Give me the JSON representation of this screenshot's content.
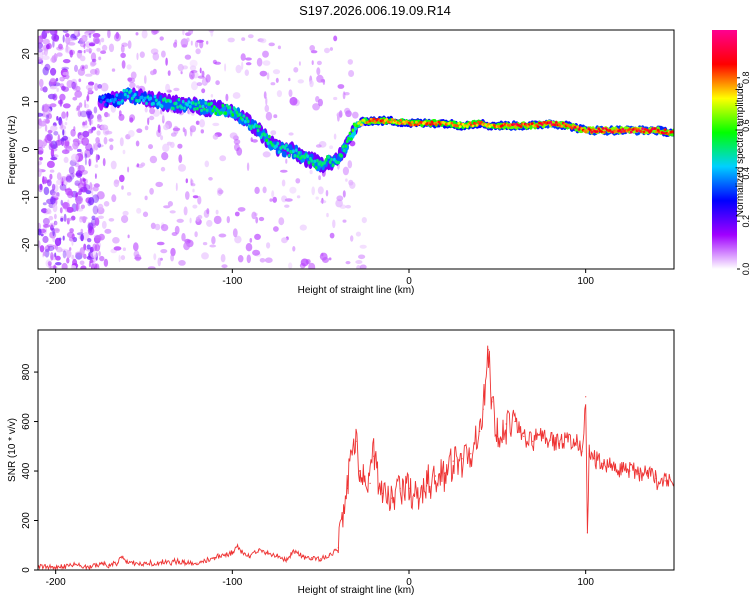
{
  "figure": {
    "title": "S197.2026.006.19.09.R14"
  },
  "chart_data": [
    {
      "type": "heatmap",
      "name": "spectrogram",
      "xlabel": "Height of straight line (km)",
      "ylabel": "Frequency (Hz)",
      "xlim": [
        -210,
        150
      ],
      "ylim": [
        -25,
        25
      ],
      "x_ticks": [
        -200,
        -100,
        0,
        100
      ],
      "y_ticks": [
        -20,
        -10,
        0,
        10,
        20
      ],
      "colorbar": {
        "label": "Normalized spectral amplitude",
        "range": [
          0.0,
          1.0
        ],
        "ticks": [
          "0.0",
          "0.2",
          "0.4",
          "0.6",
          "0.8"
        ],
        "tick_values": [
          0.0,
          0.2,
          0.4,
          0.6,
          0.8
        ],
        "stops": [
          "#ffffff",
          "#a000ff",
          "#0000ff",
          "#00d0ff",
          "#00ff00",
          "#ffff00",
          "#ff0000",
          "#ff0090"
        ]
      },
      "ridge": {
        "x": [
          -175,
          -165,
          -160,
          -150,
          -140,
          -130,
          -120,
          -110,
          -100,
          -92,
          -85,
          -80,
          -75,
          -70,
          -65,
          -60,
          -55,
          -50,
          -45,
          -40,
          -35,
          -30,
          -25,
          -20,
          -10,
          0,
          10,
          20,
          30,
          40,
          45,
          50,
          60,
          70,
          80,
          90,
          100,
          110,
          120,
          130,
          140,
          150
        ],
        "freq": [
          10,
          10.5,
          11.5,
          10.5,
          10,
          9.5,
          9,
          8.5,
          8,
          6,
          4,
          2,
          0.5,
          0,
          -0.5,
          -1.5,
          -2.5,
          -3,
          -2.5,
          -2,
          1,
          5,
          6,
          6,
          6,
          5.5,
          5.5,
          5.5,
          5,
          5.5,
          5,
          5,
          5,
          5,
          5.5,
          5,
          4,
          4,
          4,
          4,
          4,
          3.5
        ],
        "amplitude": [
          0.35,
          0.45,
          0.5,
          0.45,
          0.5,
          0.5,
          0.5,
          0.55,
          0.55,
          0.5,
          0.5,
          0.55,
          0.5,
          0.5,
          0.5,
          0.55,
          0.5,
          0.55,
          0.5,
          0.5,
          0.55,
          0.65,
          0.75,
          0.9,
          0.8,
          0.8,
          0.85,
          0.8,
          0.8,
          0.8,
          0.75,
          0.85,
          0.9,
          0.85,
          0.95,
          0.85,
          0.9,
          0.95,
          0.9,
          0.95,
          0.9,
          0.85
        ]
      }
    },
    {
      "type": "line",
      "name": "snr",
      "xlabel": "Height of straight line (km)",
      "ylabel": "SNR (10 * v/v)",
      "xlim": [
        -210,
        150
      ],
      "ylim": [
        0,
        970
      ],
      "x_ticks": [
        -200,
        -100,
        0,
        100
      ],
      "y_ticks": [
        0,
        200,
        400,
        600,
        800
      ],
      "series": [
        {
          "name": "SNR",
          "color": "#ee3333",
          "x": [
            -210,
            -200,
            -190,
            -180,
            -175,
            -170,
            -165,
            -162,
            -160,
            -150,
            -140,
            -130,
            -120,
            -110,
            -105,
            -100,
            -97,
            -95,
            -90,
            -85,
            -80,
            -75,
            -70,
            -65,
            -60,
            -55,
            -50,
            -45,
            -40,
            -37,
            -35,
            -33,
            -30,
            -28,
            -25,
            -22,
            -20,
            -17,
            -15,
            -10,
            -5,
            0,
            5,
            10,
            15,
            20,
            25,
            30,
            35,
            40,
            42,
            45,
            47,
            50,
            55,
            60,
            65,
            70,
            75,
            80,
            85,
            90,
            95,
            98,
            100,
            101,
            102,
            105,
            110,
            115,
            120,
            125,
            130,
            135,
            140,
            145,
            150
          ],
          "y": [
            15,
            10,
            20,
            12,
            25,
            20,
            28,
            55,
            35,
            25,
            30,
            35,
            28,
            50,
            60,
            70,
            95,
            75,
            55,
            80,
            65,
            60,
            40,
            75,
            55,
            50,
            45,
            60,
            90,
            250,
            330,
            480,
            520,
            400,
            380,
            350,
            460,
            330,
            310,
            290,
            330,
            330,
            300,
            340,
            380,
            390,
            440,
            450,
            470,
            560,
            650,
            890,
            680,
            540,
            590,
            600,
            540,
            520,
            540,
            525,
            510,
            520,
            520,
            480,
            700,
            150,
            470,
            450,
            430,
            420,
            410,
            400,
            390,
            380,
            370,
            360,
            350
          ]
        }
      ]
    }
  ]
}
